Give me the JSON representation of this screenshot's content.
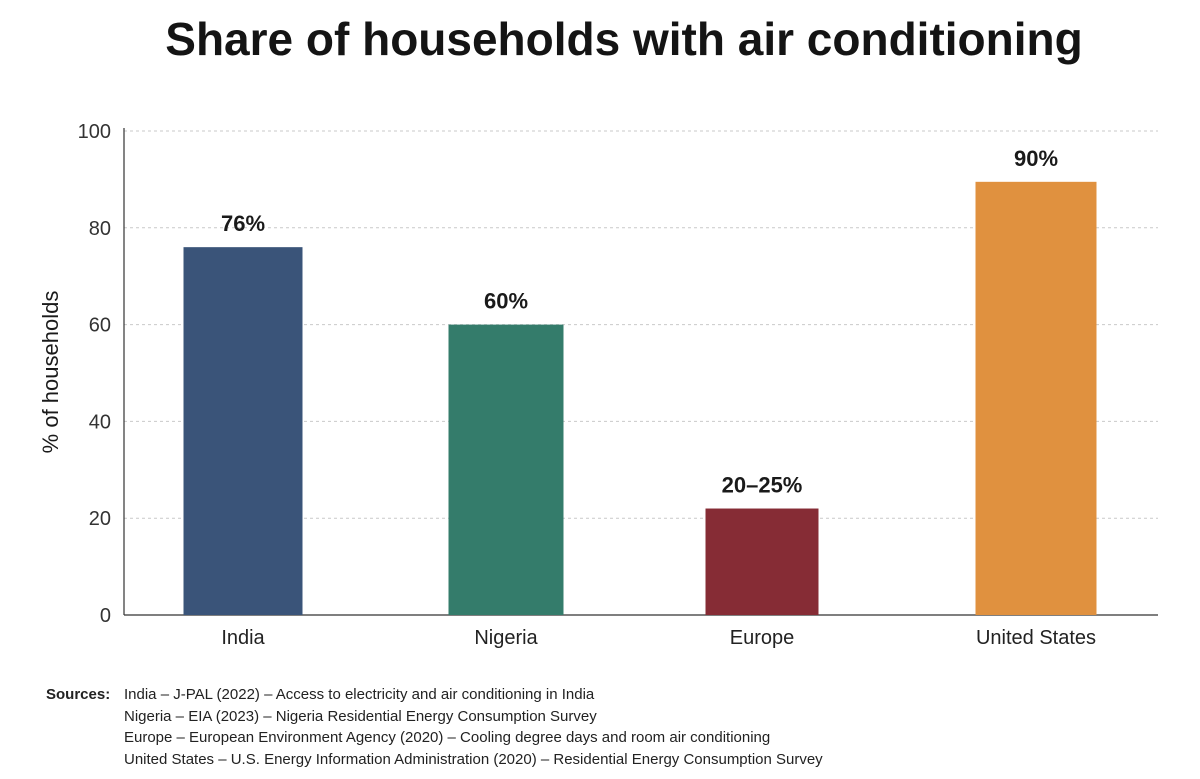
{
  "chart_data": {
    "type": "bar",
    "title": "Share of households with air conditioning",
    "xlabel": "",
    "ylabel": "% of households",
    "ylim": [
      0,
      100
    ],
    "yticks": [
      0,
      20,
      40,
      60,
      80,
      100
    ],
    "grid": true,
    "categories": [
      "India",
      "Nigeria",
      "Europe",
      "United States"
    ],
    "values": [
      76,
      60,
      22,
      89.5
    ],
    "data_labels": [
      "76%",
      "60%",
      "20–25%",
      "90%"
    ],
    "colors": [
      "#3a5479",
      "#347c6b",
      "#862c35",
      "#e0913f"
    ]
  },
  "sources": {
    "label": "Sources:",
    "items": [
      "India – J-PAL (2022) – Access to electricity and air conditioning in India",
      "Nigeria – EIA (2023) – Nigeria Residential Energy Consumption Survey",
      "Europe – European Environment Agency (2020) – Cooling degree days and room air conditioning",
      "United States – U.S. Energy Information Administration (2020) – Residential Energy Consumption Survey"
    ]
  }
}
